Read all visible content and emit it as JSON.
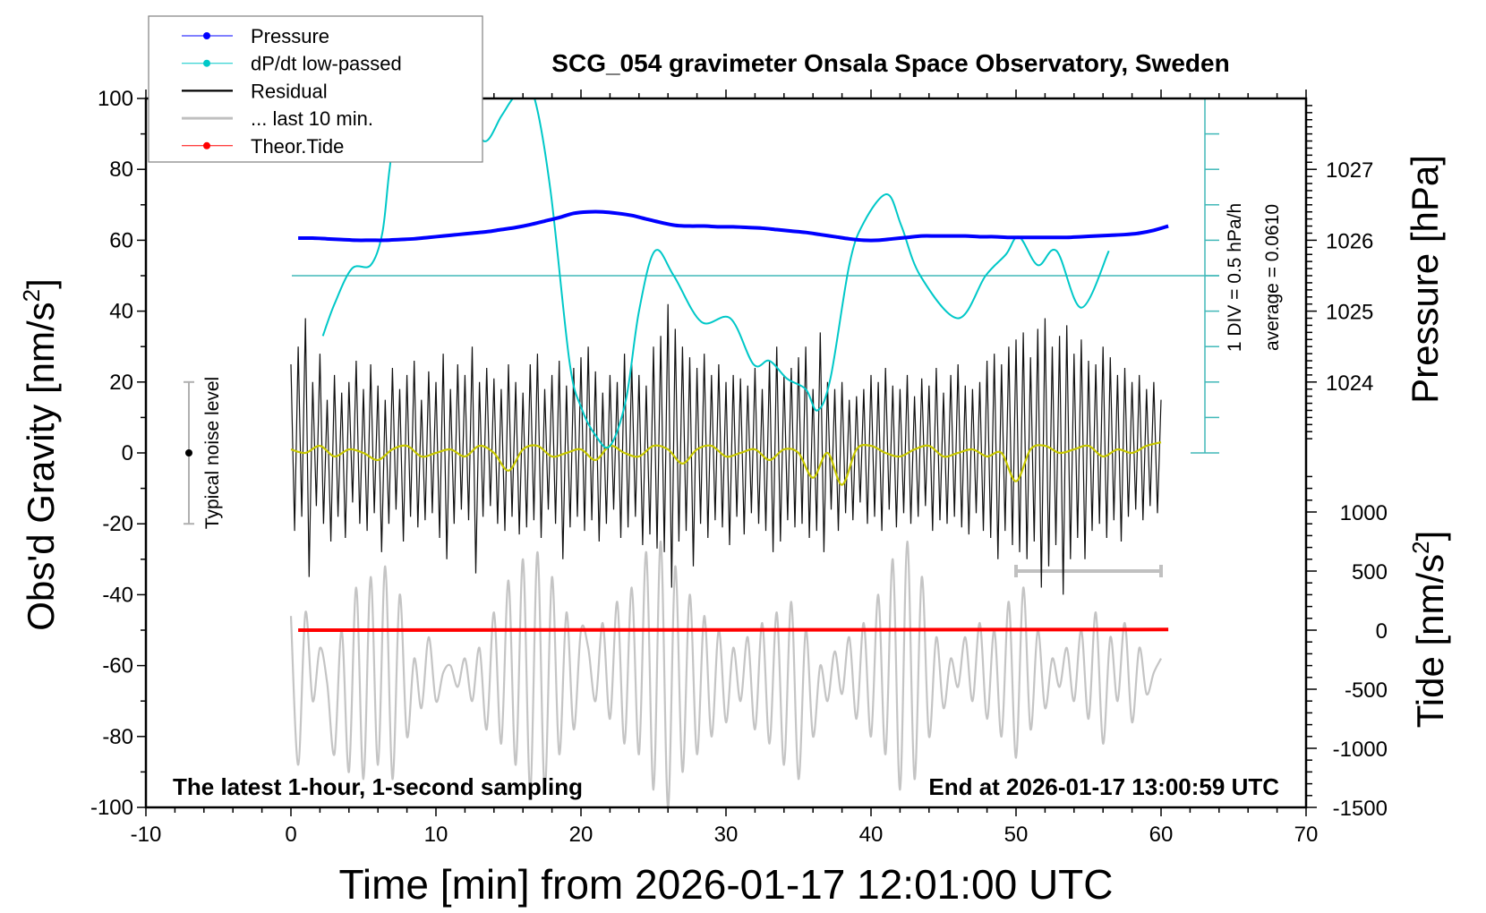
{
  "chart_data": {
    "type": "line",
    "title": "SCG_054 gravimeter Onsala Space Observatory, Sweden",
    "xlabel": "Time [min] from 2026-01-17 12:01:00 UTC",
    "ylabel": "Obs'd Gravity [nm/s2]",
    "ylabel_main": "Obs'd Gravity [nm/s",
    "ylabel_sup": "2",
    "ylabel_end": "]",
    "y2label": "Pressure [hPa]",
    "y3label_main": "Tide [nm/s",
    "y3label_sup": "2",
    "y3label_end": "]",
    "xlim": [
      -10,
      70
    ],
    "ylim": [
      -100,
      100
    ],
    "pressure_ticks": [
      "1024",
      "1025",
      "1026",
      "1027"
    ],
    "tide_ticks": [
      "1000",
      "500",
      "0",
      "-500",
      "-1000",
      "-1500"
    ],
    "x_ticks": [
      "-10",
      "0",
      "10",
      "20",
      "30",
      "40",
      "50",
      "60",
      "70"
    ],
    "y_ticks": [
      "100",
      "80",
      "60",
      "40",
      "20",
      "0",
      "-20",
      "-40",
      "-60",
      "-80",
      "-100"
    ],
    "dpdt_scale_label": "1 DIV = 0.5 hPa/h",
    "dpdt_average_label": "average = 0.0610",
    "dpdt_average": 0.061,
    "noise_label": "Typical noise level",
    "noise_level": 20,
    "last10_range": [
      50,
      60
    ],
    "annotation_left": "The latest 1-hour, 1-second sampling",
    "annotation_right": "End at 2026-01-17 13:00:59 UTC",
    "legend_position": "top-left",
    "legend": [
      {
        "name": "Pressure",
        "color": "#0000ff",
        "marker": true
      },
      {
        "name": "dP/dt low-passed",
        "color": "#00c8c8",
        "marker": true
      },
      {
        "name": "Residual",
        "color": "#000000",
        "marker": false
      },
      {
        "name": "... last 10 min.",
        "color": "#c0c0c0",
        "marker": false
      },
      {
        "name": "Theor.Tide",
        "color": "#ff0000",
        "marker": true
      }
    ],
    "series": {
      "pressure": {
        "unit": "hPa",
        "t_start": 0.5,
        "t_step": 1,
        "values": [
          1026.03,
          1026.03,
          1026.02,
          1026.01,
          1026.0,
          1026.0,
          1026.0,
          1026.01,
          1026.02,
          1026.04,
          1026.06,
          1026.08,
          1026.1,
          1026.12,
          1026.15,
          1026.18,
          1026.22,
          1026.27,
          1026.32,
          1026.38,
          1026.4,
          1026.4,
          1026.38,
          1026.35,
          1026.3,
          1026.25,
          1026.21,
          1026.2,
          1026.2,
          1026.19,
          1026.19,
          1026.18,
          1026.17,
          1026.15,
          1026.13,
          1026.11,
          1026.08,
          1026.05,
          1026.02,
          1026.0,
          1026.0,
          1026.02,
          1026.04,
          1026.06,
          1026.06,
          1026.06,
          1026.06,
          1026.05,
          1026.05,
          1026.04,
          1026.04,
          1026.04,
          1026.04,
          1026.04,
          1026.05,
          1026.06,
          1026.07,
          1026.08,
          1026.1,
          1026.14,
          1026.2
        ]
      },
      "dpdt": {
        "unit": "hPa/h",
        "points": [
          [
            2.2,
            -0.79
          ],
          [
            3,
            -0.34
          ],
          [
            4.2,
            0.16
          ],
          [
            5.5,
            0.21
          ],
          [
            6.3,
            0.66
          ],
          [
            6.8,
            1.56
          ],
          [
            7.5,
            2.56
          ],
          [
            9,
            3.31
          ],
          [
            12,
            2.56
          ],
          [
            13.3,
            1.96
          ],
          [
            14.5,
            2.31
          ],
          [
            15.3,
            2.56
          ],
          [
            16,
            2.66
          ],
          [
            16.8,
            2.56
          ],
          [
            17.9,
            1.26
          ],
          [
            19.2,
            -1.14
          ],
          [
            20,
            -1.79
          ],
          [
            21,
            -2.19
          ],
          [
            22,
            -2.34
          ],
          [
            23.1,
            -1.69
          ],
          [
            24,
            -0.44
          ],
          [
            25.1,
            0.41
          ],
          [
            26.4,
            0.06
          ],
          [
            28.3,
            -0.59
          ],
          [
            30.3,
            -0.54
          ],
          [
            31.9,
            -1.19
          ],
          [
            33,
            -1.14
          ],
          [
            34.2,
            -1.39
          ],
          [
            35.5,
            -1.54
          ],
          [
            36.3,
            -1.84
          ],
          [
            37.2,
            -1.39
          ],
          [
            38.5,
            0.21
          ],
          [
            39.5,
            0.81
          ],
          [
            41.1,
            1.21
          ],
          [
            42.1,
            0.76
          ],
          [
            43.4,
            0.06
          ],
          [
            46,
            -0.54
          ],
          [
            47.9,
            0.06
          ],
          [
            49.3,
            0.36
          ],
          [
            50.2,
            0.61
          ],
          [
            51.5,
            0.21
          ],
          [
            52.8,
            0.41
          ],
          [
            54.5,
            -0.39
          ],
          [
            56.4,
            0.41
          ]
        ]
      },
      "residual": {
        "unit": "nm/s2",
        "t_start": 0,
        "t_step": 0.25,
        "values": [
          25,
          -22,
          30,
          -18,
          38,
          -35,
          20,
          -15,
          28,
          -20,
          15,
          -25,
          22,
          -18,
          17,
          -24,
          20,
          -14,
          26,
          -20,
          18,
          -22,
          25,
          -17,
          19,
          -28,
          15,
          -20,
          24,
          -16,
          18,
          -25,
          22,
          -18,
          26,
          -21,
          15,
          -19,
          23,
          -17,
          20,
          -24,
          28,
          -30,
          18,
          -20,
          25,
          -16,
          22,
          -19,
          30,
          -34,
          20,
          -18,
          24,
          -15,
          21,
          -20,
          18,
          -22,
          25,
          -18,
          20,
          -23,
          17,
          -21,
          25,
          -19,
          28,
          -24,
          18,
          -16,
          22,
          -20,
          26,
          -30,
          19,
          -21,
          24,
          -18,
          27,
          -22,
          30,
          -19,
          23,
          -25,
          17,
          -20,
          22,
          -16,
          20,
          -24,
          28,
          -21,
          25,
          -18,
          22,
          -26,
          19,
          -23,
          30,
          -27,
          33,
          -28,
          42,
          -38,
          35,
          -25,
          30,
          -22,
          27,
          -32,
          24,
          -20,
          28,
          -24,
          22,
          -19,
          25,
          -21,
          20,
          -26,
          22,
          -18,
          21,
          -23,
          19,
          -17,
          24,
          -20,
          18,
          -22,
          26,
          -28,
          30,
          -25,
          22,
          -19,
          24,
          -21,
          27,
          -20,
          30,
          -24,
          18,
          -22,
          34,
          -28,
          20,
          -16,
          18,
          -22,
          20,
          -17,
          15,
          -19,
          16,
          -14,
          18,
          -20,
          22,
          -18,
          20,
          -22,
          24,
          -16,
          19,
          -21,
          18,
          -17,
          22,
          -20,
          16,
          -18,
          21,
          -15,
          19,
          -22,
          24,
          -19,
          17,
          -20,
          22,
          -18,
          25,
          -21,
          19,
          -23,
          18,
          -17,
          20,
          -22,
          26,
          -24,
          28,
          -30,
          25,
          -22,
          30,
          -26,
          32,
          -28,
          34,
          -30,
          27,
          -25,
          35,
          -38,
          38,
          -32,
          30,
          -26,
          33,
          -40,
          36,
          -30,
          28,
          -24,
          32,
          -30,
          26,
          -22,
          25,
          -20,
          30,
          -24,
          27,
          -19,
          22,
          -25,
          24,
          -18,
          20,
          -16,
          22,
          -19,
          18,
          -15,
          20,
          -17,
          15
        ]
      },
      "residual_smoothed": {
        "unit": "nm/s2",
        "t_start": 0,
        "t_step": 1,
        "values": [
          1,
          0,
          2,
          -1,
          1,
          0,
          -2,
          1,
          2,
          -1,
          0,
          1,
          -1,
          2,
          0,
          -5,
          1,
          2,
          -1,
          0,
          1,
          -2,
          2,
          0,
          -1,
          2,
          1,
          -3,
          1,
          2,
          -1,
          0,
          1,
          -2,
          1,
          0,
          -7,
          0,
          -9,
          1,
          2,
          0,
          -1,
          1,
          2,
          -1,
          0,
          1,
          -1,
          0,
          -8,
          1,
          2,
          0,
          1,
          2,
          -1,
          1,
          0,
          2,
          3
        ]
      },
      "last_10_min": {
        "unit": "nm/s2",
        "t_start": 0,
        "t_step": 0.5,
        "values": [
          -46,
          -88,
          -45,
          -70,
          -55,
          -65,
          -85,
          -50,
          -90,
          -38,
          -92,
          -35,
          -88,
          -32,
          -92,
          -40,
          -80,
          -58,
          -72,
          -52,
          -70,
          -62,
          -60,
          -66,
          -58,
          -70,
          -55,
          -78,
          -45,
          -82,
          -36,
          -88,
          -30,
          -95,
          -28,
          -95,
          -35,
          -85,
          -45,
          -78,
          -50,
          -55,
          -70,
          -48,
          -75,
          -42,
          -82,
          -38,
          -85,
          -28,
          -95,
          -25,
          -100,
          -32,
          -90,
          -40,
          -85,
          -46,
          -80,
          -50,
          -76,
          -55,
          -70,
          -52,
          -78,
          -48,
          -82,
          -45,
          -88,
          -42,
          -92,
          -50,
          -80,
          -60,
          -70,
          -56,
          -68,
          -52,
          -75,
          -48,
          -80,
          -40,
          -85,
          -30,
          -95,
          -25,
          -92,
          -35,
          -80,
          -52,
          -72,
          -58,
          -66,
          -52,
          -70,
          -48,
          -75,
          -50,
          -80,
          -42,
          -86,
          -38,
          -78,
          -50,
          -72,
          -58,
          -66,
          -55,
          -70,
          -50,
          -75,
          -45,
          -82,
          -52,
          -70,
          -48,
          -76,
          -55,
          -68,
          -62,
          -58
        ]
      },
      "tide": {
        "unit": "nm/s2",
        "points": [
          [
            0.5,
            0
          ],
          [
            10,
            0.8
          ],
          [
            20,
            1.6
          ],
          [
            30,
            2.5
          ],
          [
            40,
            3.3
          ],
          [
            50,
            4.2
          ],
          [
            60.5,
            5
          ]
        ]
      }
    }
  }
}
